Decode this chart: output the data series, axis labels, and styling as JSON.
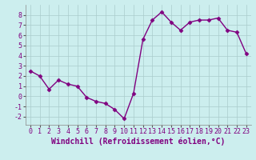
{
  "x": [
    0,
    1,
    2,
    3,
    4,
    5,
    6,
    7,
    8,
    9,
    10,
    11,
    12,
    13,
    14,
    15,
    16,
    17,
    18,
    19,
    20,
    21,
    22,
    23
  ],
  "y": [
    2.5,
    2.0,
    0.7,
    1.6,
    1.2,
    1.0,
    -0.1,
    -0.5,
    -0.7,
    -1.3,
    -2.2,
    0.3,
    5.6,
    7.5,
    8.3,
    7.3,
    6.5,
    7.3,
    7.5,
    7.5,
    7.7,
    6.5,
    6.3,
    4.2
  ],
  "line_color": "#800080",
  "marker": "D",
  "markersize": 2.5,
  "linewidth": 1.0,
  "bg_color": "#cceeee",
  "grid_color": "#aacccc",
  "xlabel": "Windchill (Refroidissement éolien,°C)",
  "xlabel_fontsize": 7,
  "yticks": [
    -2,
    -1,
    0,
    1,
    2,
    3,
    4,
    5,
    6,
    7,
    8
  ],
  "xticks": [
    0,
    1,
    2,
    3,
    4,
    5,
    6,
    7,
    8,
    9,
    10,
    11,
    12,
    13,
    14,
    15,
    16,
    17,
    18,
    19,
    20,
    21,
    22,
    23
  ],
  "ylim": [
    -2.8,
    9.0
  ],
  "xlim": [
    -0.5,
    23.5
  ],
  "tick_fontsize": 6,
  "xlabel_color": "#800080"
}
